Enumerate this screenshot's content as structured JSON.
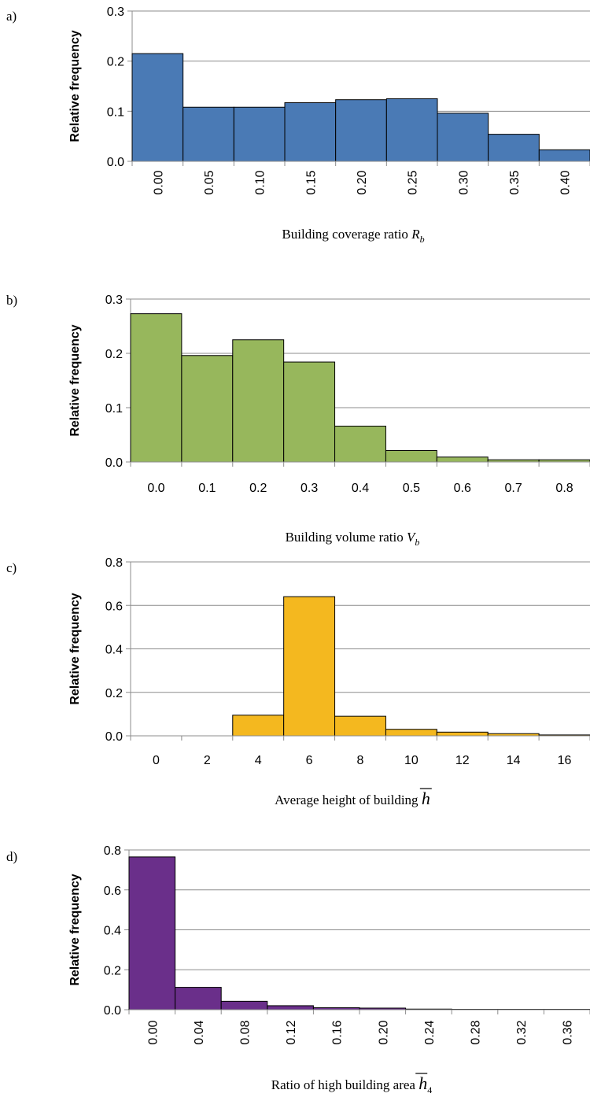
{
  "chart_data": [
    {
      "panel_label": "a)",
      "type": "bar",
      "color": "#4a7ab5",
      "categories": [
        "0.00",
        "0.05",
        "0.10",
        "0.15",
        "0.20",
        "0.25",
        "0.30",
        "0.35",
        "0.40"
      ],
      "values": [
        0.215,
        0.108,
        0.108,
        0.117,
        0.123,
        0.125,
        0.096,
        0.054,
        0.023
      ],
      "ylabel": "Relative frequency",
      "xlabel": "Building coverage ratio",
      "xlabel_symbol": "R",
      "xlabel_sub": "b",
      "ylim": [
        0,
        0.3
      ],
      "yticks": [
        "0.0",
        "0.1",
        "0.2",
        "0.3"
      ],
      "tick_rotation": "vertical",
      "grid": true
    },
    {
      "panel_label": "b)",
      "type": "bar",
      "color": "#97b75c",
      "categories": [
        "0.0",
        "0.1",
        "0.2",
        "0.3",
        "0.4",
        "0.5",
        "0.6",
        "0.7",
        "0.8"
      ],
      "values": [
        0.273,
        0.196,
        0.225,
        0.184,
        0.066,
        0.021,
        0.009,
        0.004,
        0.004
      ],
      "ylabel": "Relative frequency",
      "xlabel": "Building volume ratio",
      "xlabel_symbol": "V",
      "xlabel_sub": "b",
      "ylim": [
        0,
        0.3
      ],
      "yticks": [
        "0.0",
        "0.1",
        "0.2",
        "0.3"
      ],
      "tick_rotation": "horizontal",
      "grid": true
    },
    {
      "panel_label": "c)",
      "type": "bar",
      "color": "#f4b81f",
      "categories": [
        "0",
        "2",
        "4",
        "6",
        "8",
        "10",
        "12",
        "14",
        "16"
      ],
      "values": [
        0,
        0,
        0.095,
        0.64,
        0.09,
        0.03,
        0.017,
        0.01,
        0.004
      ],
      "ylabel": "Relative frequency",
      "xlabel": "Average height of building",
      "xlabel_symbol": "h",
      "xlabel_sub": "",
      "ylim": [
        0,
        0.8
      ],
      "yticks": [
        "0.0",
        "0.2",
        "0.4",
        "0.6",
        "0.8"
      ],
      "tick_rotation": "horizontal",
      "grid": true
    },
    {
      "panel_label": "d)",
      "type": "bar",
      "color": "#6a2f8a",
      "categories": [
        "0.00",
        "0.04",
        "0.08",
        "0.12",
        "0.16",
        "0.20",
        "0.24",
        "0.28",
        "0.32",
        "0.36"
      ],
      "values": [
        0.765,
        0.112,
        0.042,
        0.02,
        0.01,
        0.008,
        0.003,
        0.002,
        0.002,
        0.002
      ],
      "ylabel": "Relative frequency",
      "xlabel": "Ratio of high building area",
      "xlabel_symbol": "h",
      "xlabel_sub": "4",
      "ylim": [
        0,
        0.8
      ],
      "yticks": [
        "0.0",
        "0.2",
        "0.4",
        "0.6",
        "0.8"
      ],
      "tick_rotation": "vertical",
      "grid": true
    }
  ]
}
